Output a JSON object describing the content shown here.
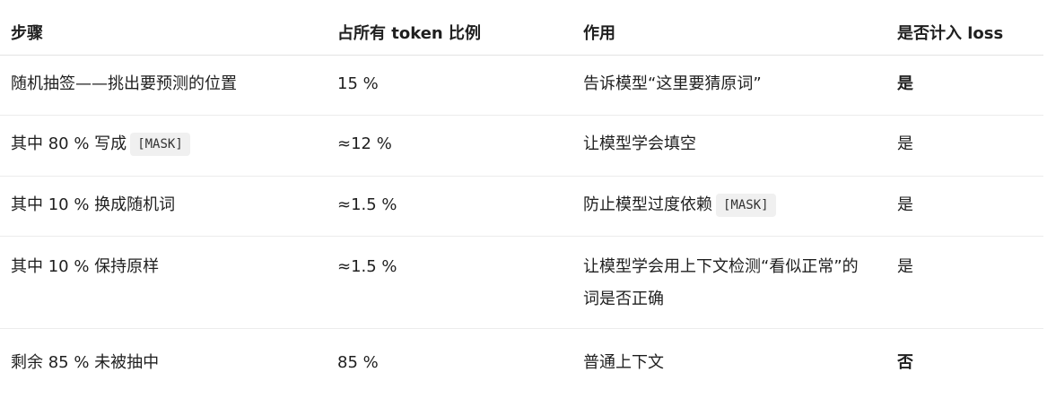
{
  "header": {
    "col1": "步骤",
    "col2": "占所有 token 比例",
    "col3": "作用",
    "col4": "是否计入 loss"
  },
  "rows": [
    {
      "step": "随机抽签——挑出要预测的位置",
      "ratio": "15 %",
      "purpose": "告诉模型“这里要猜原词”",
      "loss": "是",
      "loss_bold": true
    },
    {
      "step": "其中 80 % 写成",
      "step_code": "[MASK]",
      "ratio": "≈12 %",
      "purpose": "让模型学会填空",
      "loss": "是",
      "loss_bold": false
    },
    {
      "step": "其中 10 % 换成随机词",
      "ratio": "≈1.5 %",
      "purpose": "防止模型过度依赖",
      "purpose_code": "[MASK]",
      "loss": "是",
      "loss_bold": false
    },
    {
      "step": "其中 10 % 保持原样",
      "ratio": "≈1.5 %",
      "purpose": "让模型学会用上下文检测“看似正常”的词是否正确",
      "loss": "是",
      "loss_bold": false
    },
    {
      "step": "剩余 85 % 未被抽中",
      "ratio": "85 %",
      "purpose": "普通上下文",
      "loss": "否",
      "loss_bold": true
    }
  ]
}
